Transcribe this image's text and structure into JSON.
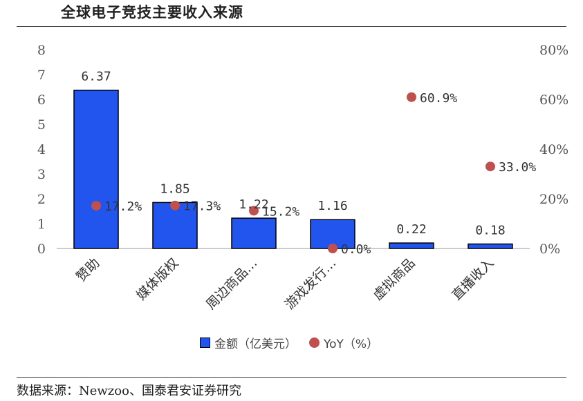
{
  "header": {
    "title": "全球电子竞技主要收入来源"
  },
  "footer": {
    "source": "数据来源：Newzoo、国泰君安证券研究"
  },
  "chart_data": {
    "type": "bar",
    "categories": [
      "赞助",
      "媒体版权",
      "周边商品…",
      "游戏发行…",
      "虚拟商品",
      "直播收入"
    ],
    "series": [
      {
        "name": "金额（亿美元）",
        "type": "bar",
        "axis": "left",
        "color": "#2255ee",
        "values": [
          6.37,
          1.85,
          1.22,
          1.16,
          0.22,
          0.18
        ],
        "labels": [
          "6.37",
          "1.85",
          "1.22",
          "1.16",
          "0.22",
          "0.18"
        ]
      },
      {
        "name": "YoY（%）",
        "type": "scatter",
        "axis": "right",
        "color": "#c0504d",
        "values": [
          17.2,
          17.3,
          15.2,
          0.0,
          60.9,
          33.0
        ],
        "labels": [
          "17.2%",
          "17.3%",
          "15.2%",
          "0.0%",
          "60.9%",
          "33.0%"
        ]
      }
    ],
    "y_left": {
      "lim": [
        0,
        8
      ],
      "ticks": [
        "0",
        "1",
        "2",
        "3",
        "4",
        "5",
        "6",
        "7",
        "8"
      ]
    },
    "y_right": {
      "lim": [
        0,
        80
      ],
      "ticks": [
        "0%",
        "20%",
        "40%",
        "60%",
        "80%"
      ]
    },
    "legend_position": "bottom",
    "grid": false
  }
}
